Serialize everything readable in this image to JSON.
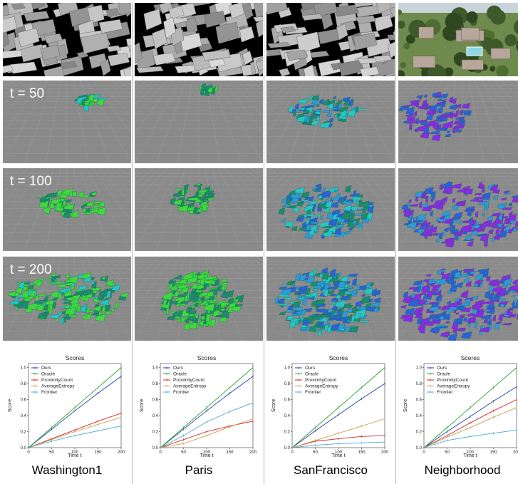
{
  "figure": {
    "row_labels": [
      "t = 50",
      "t = 100",
      "t = 200"
    ],
    "columns": [
      {
        "name": "Washington1",
        "render_style": "gray-city"
      },
      {
        "name": "Paris",
        "render_style": "gray-city"
      },
      {
        "name": "SanFrancisco",
        "render_style": "gray-city"
      },
      {
        "name": "Neighborhood",
        "render_style": "photo"
      }
    ],
    "colors": {
      "green": "#3fd83f",
      "dark_green": "#1c8c6c",
      "cyan": "#25c6c6",
      "blue": "#2a63d8",
      "light_blue": "#2f9ad9",
      "purple": "#8a2be2",
      "ground": "#8a8a8a"
    }
  },
  "chart_data": [
    {
      "type": "line",
      "title": "Scores",
      "xlabel": "Time t",
      "ylabel": "Score",
      "xlim": [
        0,
        200
      ],
      "ylim": [
        0,
        1.05
      ],
      "xticks": [
        0,
        50,
        100,
        150,
        200
      ],
      "yticks": [
        "0.0",
        "0.2",
        "0.4",
        "0.6",
        "0.8",
        "1.0"
      ],
      "legend": "top-left",
      "series": [
        {
          "name": "Ours",
          "color": "#1f3fa8",
          "x": [
            0,
            50,
            100,
            150,
            200
          ],
          "y": [
            0,
            0.23,
            0.46,
            0.68,
            0.89
          ]
        },
        {
          "name": "Oracle",
          "color": "#2ca02c",
          "x": [
            0,
            50,
            100,
            150,
            200
          ],
          "y": [
            0,
            0.25,
            0.5,
            0.75,
            1.0
          ]
        },
        {
          "name": "ProximityCount",
          "color": "#d62728",
          "x": [
            0,
            50,
            100,
            150,
            200
          ],
          "y": [
            0,
            0.11,
            0.22,
            0.33,
            0.43
          ]
        },
        {
          "name": "AverageEntropy",
          "color": "#c7a04a",
          "x": [
            0,
            50,
            100,
            150,
            200
          ],
          "y": [
            0,
            0.1,
            0.2,
            0.29,
            0.38
          ]
        },
        {
          "name": "Frontier",
          "color": "#4aa8d8",
          "x": [
            0,
            50,
            100,
            150,
            200
          ],
          "y": [
            0,
            0.08,
            0.15,
            0.21,
            0.27
          ]
        }
      ]
    },
    {
      "type": "line",
      "title": "Scores",
      "xlabel": "Time t",
      "ylabel": "Score",
      "xlim": [
        0,
        200
      ],
      "ylim": [
        0,
        1.05
      ],
      "xticks": [
        0,
        50,
        100,
        150,
        200
      ],
      "yticks": [
        "0.0",
        "0.2",
        "0.4",
        "0.6",
        "0.8",
        "1.0"
      ],
      "legend": "top-left",
      "series": [
        {
          "name": "Ours",
          "color": "#1f3fa8",
          "x": [
            0,
            50,
            100,
            150,
            200
          ],
          "y": [
            0,
            0.23,
            0.46,
            0.68,
            0.89
          ]
        },
        {
          "name": "Oracle",
          "color": "#2ca02c",
          "x": [
            0,
            50,
            100,
            150,
            200
          ],
          "y": [
            0,
            0.25,
            0.5,
            0.75,
            1.0
          ]
        },
        {
          "name": "ProximityCount",
          "color": "#d62728",
          "x": [
            0,
            50,
            100,
            150,
            200
          ],
          "y": [
            0,
            0.1,
            0.2,
            0.27,
            0.33
          ]
        },
        {
          "name": "AverageEntropy",
          "color": "#c7a04a",
          "x": [
            0,
            50,
            100,
            150,
            200
          ],
          "y": [
            0,
            0.05,
            0.15,
            0.26,
            0.36
          ]
        },
        {
          "name": "Frontier",
          "color": "#4aa8d8",
          "x": [
            0,
            50,
            100,
            150,
            200
          ],
          "y": [
            0,
            0.15,
            0.32,
            0.45,
            0.56
          ]
        }
      ]
    },
    {
      "type": "line",
      "title": "Scores",
      "xlabel": "Time t",
      "ylabel": "Score",
      "xlim": [
        0,
        200
      ],
      "ylim": [
        0,
        1.05
      ],
      "xticks": [
        0,
        50,
        100,
        150,
        200
      ],
      "yticks": [
        "0.0",
        "0.2",
        "0.4",
        "0.6",
        "0.8",
        "1.0"
      ],
      "legend": "top-left",
      "series": [
        {
          "name": "Ours",
          "color": "#1f3fa8",
          "x": [
            0,
            50,
            100,
            150,
            200
          ],
          "y": [
            0,
            0.21,
            0.41,
            0.61,
            0.8
          ]
        },
        {
          "name": "Oracle",
          "color": "#2ca02c",
          "x": [
            0,
            50,
            100,
            150,
            200
          ],
          "y": [
            0,
            0.25,
            0.5,
            0.75,
            1.0
          ]
        },
        {
          "name": "ProximityCount",
          "color": "#d62728",
          "x": [
            0,
            50,
            100,
            150,
            200
          ],
          "y": [
            0,
            0.08,
            0.11,
            0.14,
            0.15
          ]
        },
        {
          "name": "AverageEntropy",
          "color": "#c7a04a",
          "x": [
            0,
            50,
            100,
            150,
            200
          ],
          "y": [
            0,
            0.09,
            0.18,
            0.27,
            0.36
          ]
        },
        {
          "name": "Frontier",
          "color": "#4aa8d8",
          "x": [
            0,
            50,
            100,
            150,
            200
          ],
          "y": [
            0,
            0.03,
            0.05,
            0.06,
            0.07
          ]
        }
      ]
    },
    {
      "type": "line",
      "title": "Scores",
      "xlabel": "Time t",
      "ylabel": "Score",
      "xlim": [
        0,
        200
      ],
      "ylim": [
        0,
        1.05
      ],
      "xticks": [
        0,
        50,
        100,
        150,
        200
      ],
      "yticks": [
        "0.0",
        "0.2",
        "0.4",
        "0.6",
        "0.8",
        "1.0"
      ],
      "legend": "top-left",
      "series": [
        {
          "name": "Ours",
          "color": "#1f3fa8",
          "x": [
            0,
            50,
            100,
            150,
            200
          ],
          "y": [
            0,
            0.2,
            0.39,
            0.58,
            0.76
          ]
        },
        {
          "name": "Oracle",
          "color": "#2ca02c",
          "x": [
            0,
            50,
            100,
            150,
            200
          ],
          "y": [
            0,
            0.25,
            0.5,
            0.75,
            1.0
          ]
        },
        {
          "name": "ProximityCount",
          "color": "#d62728",
          "x": [
            0,
            50,
            100,
            150,
            200
          ],
          "y": [
            0,
            0.15,
            0.31,
            0.46,
            0.6
          ]
        },
        {
          "name": "AverageEntropy",
          "color": "#c7a04a",
          "x": [
            0,
            50,
            100,
            150,
            200
          ],
          "y": [
            0,
            0.13,
            0.25,
            0.38,
            0.5
          ]
        },
        {
          "name": "Frontier",
          "color": "#4aa8d8",
          "x": [
            0,
            50,
            100,
            150,
            200
          ],
          "y": [
            0,
            0.09,
            0.14,
            0.18,
            0.22
          ]
        }
      ]
    }
  ]
}
